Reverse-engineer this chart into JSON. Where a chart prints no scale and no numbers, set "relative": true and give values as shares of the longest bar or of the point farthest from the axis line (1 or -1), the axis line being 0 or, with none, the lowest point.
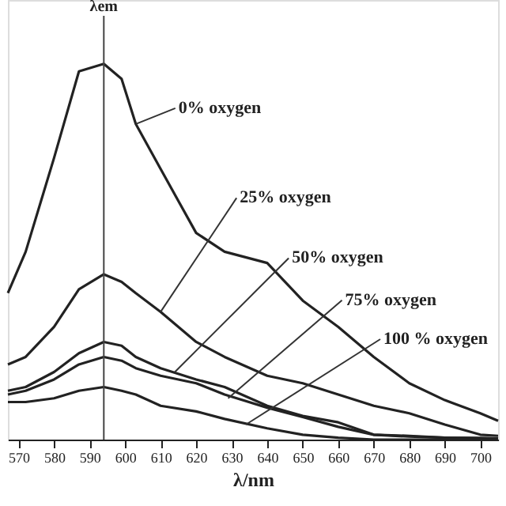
{
  "chart_data": {
    "type": "line",
    "relative": true,
    "xlabel": "λ/nm",
    "xlim": [
      567,
      705
    ],
    "xticks": [
      570,
      580,
      590,
      600,
      610,
      620,
      630,
      640,
      650,
      660,
      670,
      680,
      690,
      700
    ],
    "x": [
      567,
      572,
      580,
      587,
      594,
      599,
      603,
      610,
      620,
      628,
      640,
      650,
      660,
      670,
      680,
      690,
      700,
      705
    ],
    "series": [
      {
        "color": "#222222",
        "values": [
          0.39,
          0.5,
          0.75,
          0.98,
          1.0,
          0.96,
          0.84,
          0.72,
          0.55,
          0.5,
          0.47,
          0.37,
          0.3,
          0.22,
          0.15,
          0.105,
          0.07,
          0.05
        ]
      },
      {
        "color": "#222222",
        "values": [
          0.2,
          0.22,
          0.3,
          0.4,
          0.44,
          0.42,
          0.39,
          0.34,
          0.26,
          0.22,
          0.17,
          0.15,
          0.12,
          0.09,
          0.07,
          0.04,
          0.013,
          0.01
        ]
      },
      {
        "color": "#222222",
        "values": [
          0.13,
          0.14,
          0.18,
          0.23,
          0.26,
          0.25,
          0.22,
          0.19,
          0.16,
          0.14,
          0.09,
          0.063,
          0.046,
          0.013,
          0.008,
          0.005,
          0.004,
          0.003
        ]
      },
      {
        "color": "#222222",
        "values": [
          0.12,
          0.13,
          0.16,
          0.2,
          0.22,
          0.21,
          0.19,
          0.17,
          0.15,
          0.12,
          0.085,
          0.06,
          0.034,
          0.013,
          0.01,
          0.005,
          0.004,
          0.003
        ]
      },
      {
        "color": "#222222",
        "values": [
          0.1,
          0.1,
          0.11,
          0.13,
          0.14,
          0.13,
          0.12,
          0.09,
          0.075,
          0.055,
          0.03,
          0.013,
          0.005,
          0.0,
          0.0,
          0.0,
          0.0,
          0.0
        ]
      }
    ],
    "ref_lines": [
      {
        "axis": "x",
        "value": 594,
        "label": "λem"
      }
    ],
    "annotations": [
      {
        "text": "0% oxygen",
        "x": 603,
        "y": 0.84
      },
      {
        "text": "25% oxygen",
        "x": 610,
        "y": 0.34
      },
      {
        "text": "50% oxygen",
        "x": 614,
        "y": 0.18
      },
      {
        "text": "75% oxygen",
        "x": 629,
        "y": 0.11
      },
      {
        "text": "100 % oxygen",
        "x": 634,
        "y": 0.04
      }
    ]
  }
}
